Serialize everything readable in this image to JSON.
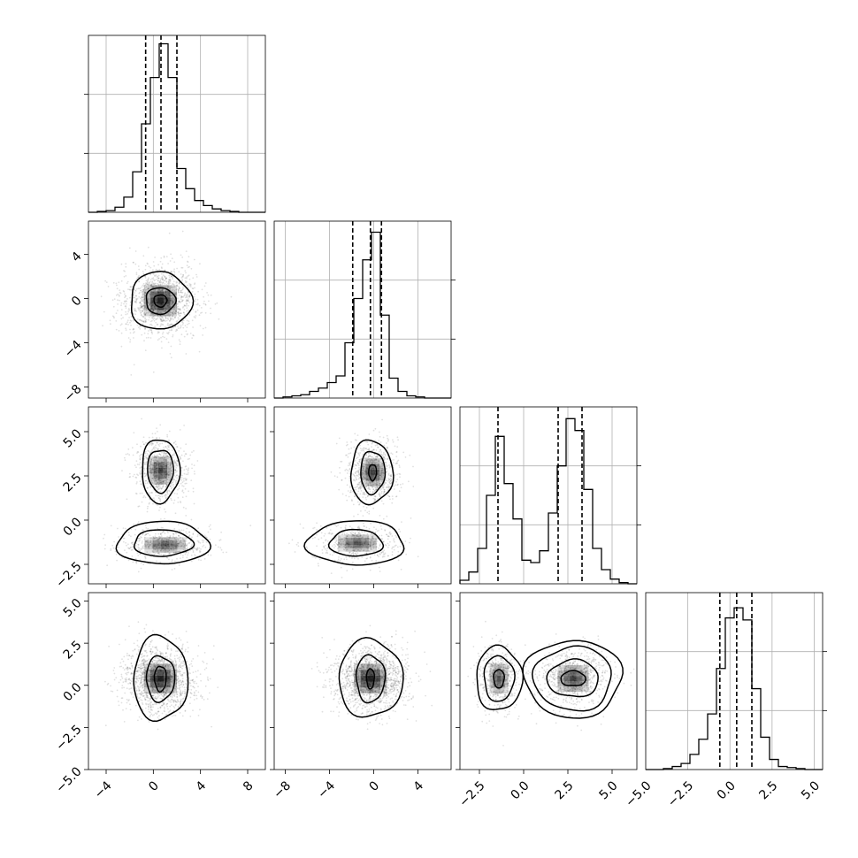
{
  "chart_data": {
    "type": "corner",
    "grid": true,
    "params": [
      {
        "index": 0,
        "range": [
          -5.5,
          9.5
        ],
        "ticks": [
          -4,
          0,
          4,
          8
        ],
        "tick_labels": [
          "−4",
          "0",
          "4",
          "8"
        ],
        "hist": {
          "edges": [
            -5.5,
            -4.75,
            -4.0,
            -3.25,
            -2.5,
            -1.75,
            -1.0,
            -0.25,
            0.5,
            1.25,
            2.0,
            2.75,
            3.5,
            4.25,
            5.0,
            5.75,
            6.5,
            7.25,
            8.0,
            8.75,
            9.5
          ],
          "counts": [
            0,
            1,
            2,
            6,
            18,
            48,
            105,
            160,
            200,
            160,
            52,
            28,
            14,
            8,
            4,
            2,
            1,
            0,
            0,
            0
          ],
          "max": 210
        },
        "quantiles": [
          -0.65,
          0.65,
          2.0
        ]
      },
      {
        "index": 1,
        "range": [
          -9.0,
          7.0
        ],
        "ticks": [
          -8,
          -4,
          0,
          4
        ],
        "tick_labels": [
          "−8",
          "−4",
          "0",
          "4"
        ],
        "hist": {
          "edges": [
            -9.0,
            -8.2,
            -7.4,
            -6.6,
            -5.8,
            -5.0,
            -4.2,
            -3.4,
            -2.6,
            -1.8,
            -1.0,
            -0.2,
            0.6,
            1.4,
            2.2,
            3.0,
            3.8,
            4.6,
            5.4,
            6.2,
            7.0
          ],
          "counts": [
            0,
            1,
            2,
            3,
            6,
            9,
            14,
            20,
            50,
            90,
            125,
            150,
            75,
            18,
            6,
            2,
            1,
            0,
            0,
            0
          ],
          "max": 160
        },
        "quantiles": [
          -1.9,
          -0.3,
          0.7
        ]
      },
      {
        "index": 2,
        "range": [
          -3.6,
          6.4
        ],
        "ticks": [
          -2.5,
          0.0,
          2.5,
          5.0
        ],
        "tick_labels": [
          "−2.5",
          "0.0",
          "2.5",
          "5.0"
        ],
        "hist": {
          "edges": [
            -3.6,
            -3.1,
            -2.6,
            -2.1,
            -1.6,
            -1.1,
            -0.6,
            -0.1,
            0.4,
            0.9,
            1.4,
            1.9,
            2.4,
            2.9,
            3.4,
            3.9,
            4.4,
            4.9,
            5.4,
            5.9,
            6.4
          ],
          "counts": [
            3,
            10,
            30,
            75,
            125,
            85,
            55,
            20,
            18,
            28,
            60,
            100,
            140,
            130,
            80,
            30,
            12,
            4,
            1,
            0
          ],
          "max": 150
        },
        "quantiles": [
          -1.45,
          1.95,
          3.3
        ]
      },
      {
        "index": 3,
        "range": [
          -5.0,
          5.5
        ],
        "ticks": [
          -5.0,
          -2.5,
          0.0,
          2.5,
          5.0
        ],
        "tick_labels": [
          "−5.0",
          "−2.5",
          "0.0",
          "2.5",
          "5.0"
        ],
        "hist": {
          "edges": [
            -5.0,
            -4.475,
            -3.95,
            -3.425,
            -2.9,
            -2.375,
            -1.85,
            -1.325,
            -0.8,
            -0.275,
            0.25,
            0.775,
            1.3,
            1.825,
            2.35,
            2.875,
            3.4,
            3.925,
            4.45,
            4.975,
            5.5
          ],
          "counts": [
            0,
            0,
            1,
            3,
            6,
            15,
            30,
            55,
            100,
            150,
            160,
            148,
            80,
            32,
            10,
            3,
            2,
            1,
            0,
            0
          ],
          "max": 175
        },
        "quantiles": [
          -0.6,
          0.4,
          1.3
        ]
      }
    ],
    "pairs": [
      {
        "x": 0,
        "y": 1,
        "components": [
          {
            "mx": 0.6,
            "my": -0.2,
            "sx": 1.6,
            "sy": 1.6,
            "w": 1
          }
        ],
        "contours": [
          [
            0.6,
            -0.2,
            0.55,
            0.55
          ],
          [
            0.6,
            -0.2,
            1.25,
            1.2
          ],
          [
            0.6,
            -0.2,
            2.6,
            2.6
          ]
        ]
      },
      {
        "x": 0,
        "y": 2,
        "components": [
          {
            "mx": 0.6,
            "my": 2.8,
            "sx": 1.1,
            "sy": 0.9,
            "w": 0.6
          },
          {
            "mx": 1.0,
            "my": -1.4,
            "sx": 2.0,
            "sy": 0.5,
            "w": 0.4
          }
        ],
        "contours": [
          [
            0.6,
            2.8,
            1.1,
            1.2
          ],
          [
            0.6,
            2.8,
            1.6,
            1.8
          ],
          [
            0.8,
            -1.3,
            2.5,
            0.75
          ],
          [
            0.8,
            -1.3,
            3.9,
            1.2
          ]
        ]
      },
      {
        "x": 1,
        "y": 2,
        "components": [
          {
            "mx": -0.1,
            "my": 2.7,
            "sx": 1.2,
            "sy": 0.9,
            "w": 0.6
          },
          {
            "mx": -1.5,
            "my": -1.3,
            "sx": 2.0,
            "sy": 0.55,
            "w": 0.4
          }
        ],
        "contours": [
          [
            -0.1,
            2.7,
            0.35,
            0.45
          ],
          [
            -0.1,
            2.7,
            1.1,
            1.2
          ],
          [
            -0.2,
            2.7,
            1.9,
            1.8
          ],
          [
            -1.6,
            -1.3,
            2.4,
            0.75
          ],
          [
            -1.6,
            -1.3,
            4.4,
            1.25
          ]
        ]
      },
      {
        "x": 0,
        "y": 3,
        "components": [
          {
            "mx": 0.6,
            "my": 0.4,
            "sx": 1.6,
            "sy": 1.0,
            "w": 1
          }
        ],
        "contours": [
          [
            0.6,
            0.4,
            0.5,
            0.75
          ],
          [
            0.6,
            0.4,
            1.2,
            1.35
          ],
          [
            0.6,
            0.4,
            2.3,
            2.5
          ]
        ]
      },
      {
        "x": 1,
        "y": 3,
        "components": [
          {
            "mx": -0.3,
            "my": 0.4,
            "sx": 1.7,
            "sy": 1.0,
            "w": 1
          }
        ],
        "contours": [
          [
            -0.3,
            0.4,
            0.35,
            0.6
          ],
          [
            -0.3,
            0.4,
            1.3,
            1.4
          ],
          [
            -0.3,
            0.4,
            2.9,
            2.3
          ]
        ]
      },
      {
        "x": 2,
        "y": 3,
        "components": [
          {
            "mx": -1.4,
            "my": 0.4,
            "sx": 0.6,
            "sy": 1.0,
            "w": 0.4
          },
          {
            "mx": 2.8,
            "my": 0.4,
            "sx": 1.0,
            "sy": 0.9,
            "w": 0.6
          }
        ],
        "contours": [
          [
            -1.4,
            0.4,
            0.3,
            0.55
          ],
          [
            -1.4,
            0.4,
            0.85,
            1.35
          ],
          [
            -1.4,
            0.4,
            1.3,
            1.9
          ],
          [
            2.8,
            0.4,
            0.7,
            0.45
          ],
          [
            2.8,
            0.4,
            1.45,
            1.1
          ],
          [
            2.8,
            0.4,
            2.2,
            1.9
          ],
          [
            2.8,
            0.4,
            2.75,
            2.3
          ]
        ]
      }
    ]
  }
}
